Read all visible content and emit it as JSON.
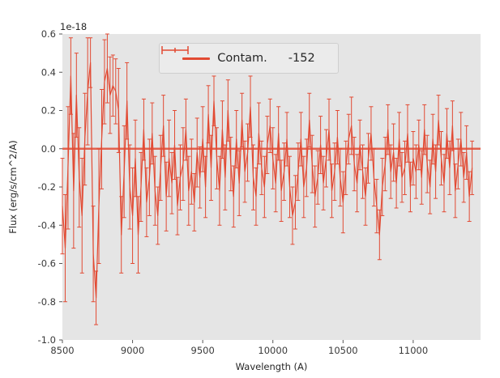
{
  "figure": {
    "kind": "matplotlib-plot",
    "style": "ggplot"
  },
  "colors": {
    "line": "#E24A33",
    "plot_bg": "#E5E5E5",
    "figure_bg": "#FFFFFF",
    "tick_mark": "#555555",
    "tick_label": "#3a3a3a",
    "legend_bg": "#EBEBEB",
    "legend_border": "#CFCFCF"
  },
  "chart_data": {
    "type": "line",
    "title": "",
    "xlabel": "Wavelength (A)",
    "ylabel": "Flux (erg/s/cm^2/A)",
    "offset_text": "1e-18",
    "xlim": [
      8500,
      11480
    ],
    "ylim": [
      -1.0,
      0.6
    ],
    "xticks": [
      8500,
      9000,
      9500,
      10000,
      10500,
      11000
    ],
    "yticks": [
      -1.0,
      -0.8,
      -0.6,
      -0.4,
      -0.2,
      0.0,
      0.2,
      0.4,
      0.6
    ],
    "grid": false,
    "legend_position": "upper center",
    "series": [
      {
        "name": "Contam.",
        "type": "hline",
        "y": 0.0
      },
      {
        "name": "-152",
        "type": "errorbar",
        "x": [
          8500,
          8520,
          8540,
          8560,
          8580,
          8600,
          8620,
          8640,
          8660,
          8680,
          8700,
          8720,
          8740,
          8760,
          8780,
          8800,
          8820,
          8840,
          8860,
          8880,
          8900,
          8920,
          8940,
          8960,
          8980,
          9000,
          9020,
          9040,
          9060,
          9080,
          9100,
          9120,
          9140,
          9160,
          9180,
          9200,
          9220,
          9240,
          9260,
          9280,
          9300,
          9320,
          9340,
          9360,
          9380,
          9400,
          9420,
          9440,
          9460,
          9480,
          9500,
          9520,
          9540,
          9560,
          9580,
          9600,
          9620,
          9640,
          9660,
          9680,
          9700,
          9720,
          9740,
          9760,
          9780,
          9800,
          9820,
          9840,
          9860,
          9880,
          9900,
          9920,
          9940,
          9960,
          9980,
          10000,
          10020,
          10040,
          10060,
          10080,
          10100,
          10120,
          10140,
          10160,
          10180,
          10200,
          10220,
          10240,
          10260,
          10280,
          10300,
          10320,
          10340,
          10360,
          10380,
          10400,
          10420,
          10440,
          10460,
          10480,
          10500,
          10520,
          10540,
          10560,
          10580,
          10600,
          10620,
          10640,
          10660,
          10680,
          10700,
          10720,
          10740,
          10760,
          10780,
          10800,
          10820,
          10840,
          10860,
          10880,
          10900,
          10920,
          10940,
          10960,
          10980,
          11000,
          11020,
          11040,
          11060,
          11080,
          11100,
          11120,
          11140,
          11160,
          11180,
          11200,
          11220,
          11240,
          11260,
          11280,
          11300,
          11320,
          11340,
          11360,
          11380,
          11400,
          11420
        ],
        "y": [
          -0.3,
          -0.52,
          -0.1,
          0.38,
          -0.22,
          0.28,
          -0.15,
          -0.35,
          0.05,
          0.3,
          0.45,
          -0.55,
          -0.78,
          -0.3,
          0.05,
          0.35,
          0.42,
          0.28,
          0.33,
          0.3,
          0.2,
          -0.45,
          -0.12,
          0.25,
          -0.2,
          -0.35,
          -0.05,
          -0.45,
          -0.2,
          0.1,
          -0.28,
          -0.15,
          0.08,
          -0.22,
          -0.35,
          -0.1,
          0.12,
          -0.25,
          -0.05,
          -0.18,
          0.02,
          -0.3,
          -0.15,
          -0.08,
          0.1,
          -0.22,
          -0.12,
          -0.28,
          -0.02,
          -0.15,
          0.05,
          -0.2,
          0.18,
          -0.1,
          0.25,
          -0.05,
          -0.22,
          0.1,
          -0.15,
          0.2,
          -0.08,
          -0.25,
          0.05,
          -0.18,
          0.15,
          -0.12,
          -0.02,
          0.22,
          -0.15,
          -0.25,
          0.08,
          -0.1,
          -0.2,
          0.02,
          0.12,
          -0.05,
          -0.18,
          0.08,
          -0.22,
          -0.12,
          0.05,
          -0.2,
          -0.35,
          -0.28,
          -0.12,
          0.05,
          -0.2,
          -0.1,
          0.15,
          -0.08,
          -0.25,
          -0.15,
          0.02,
          -0.18,
          -0.05,
          0.1,
          -0.22,
          -0.12,
          0.06,
          -0.15,
          -0.28,
          -0.1,
          0.05,
          0.12,
          -0.08,
          -0.18,
          0.02,
          -0.12,
          -0.25,
          -0.05,
          0.08,
          -0.15,
          -0.3,
          -0.45,
          -0.2,
          -0.08,
          0.1,
          -0.12,
          -0.02,
          -0.18,
          0.05,
          -0.15,
          -0.1,
          0.08,
          -0.2,
          -0.05,
          -0.12,
          0.02,
          -0.15,
          0.1,
          -0.08,
          -0.2,
          0.05,
          -0.12,
          0.15,
          -0.05,
          -0.18,
          0.08,
          -0.1,
          0.12,
          -0.22,
          -0.08,
          0.05,
          -0.15,
          -0.02,
          -0.25,
          -0.1
        ],
        "yerr": [
          0.25,
          0.28,
          0.32,
          0.2,
          0.3,
          0.22,
          0.26,
          0.3,
          0.24,
          0.28,
          0.13,
          0.25,
          0.14,
          0.3,
          0.26,
          0.22,
          0.18,
          0.2,
          0.16,
          0.17,
          0.22,
          0.2,
          0.24,
          0.2,
          0.22,
          0.25,
          0.2,
          0.2,
          0.18,
          0.16,
          0.18,
          0.2,
          0.16,
          0.18,
          0.15,
          0.17,
          0.16,
          0.18,
          0.2,
          0.16,
          0.18,
          0.15,
          0.17,
          0.19,
          0.16,
          0.18,
          0.17,
          0.15,
          0.18,
          0.16,
          0.17,
          0.16,
          0.15,
          0.17,
          0.13,
          0.16,
          0.18,
          0.15,
          0.17,
          0.16,
          0.14,
          0.16,
          0.15,
          0.17,
          0.14,
          0.16,
          0.15,
          0.16,
          0.17,
          0.15,
          0.16,
          0.14,
          0.16,
          0.15,
          0.14,
          0.16,
          0.15,
          0.14,
          0.16,
          0.15,
          0.14,
          0.16,
          0.15,
          0.14,
          0.15,
          0.14,
          0.16,
          0.15,
          0.14,
          0.15,
          0.16,
          0.14,
          0.15,
          0.14,
          0.15,
          0.16,
          0.14,
          0.15,
          0.14,
          0.15,
          0.16,
          0.14,
          0.13,
          0.15,
          0.14,
          0.15,
          0.13,
          0.14,
          0.15,
          0.13,
          0.14,
          0.15,
          0.14,
          0.13,
          0.15,
          0.14,
          0.13,
          0.14,
          0.15,
          0.13,
          0.14,
          0.13,
          0.14,
          0.15,
          0.13,
          0.14,
          0.14,
          0.13,
          0.14,
          0.13,
          0.15,
          0.14,
          0.13,
          0.14,
          0.13,
          0.14,
          0.15,
          0.13,
          0.14,
          0.13,
          0.14,
          0.13,
          0.14,
          0.13,
          0.14,
          0.13,
          0.14
        ]
      }
    ]
  }
}
